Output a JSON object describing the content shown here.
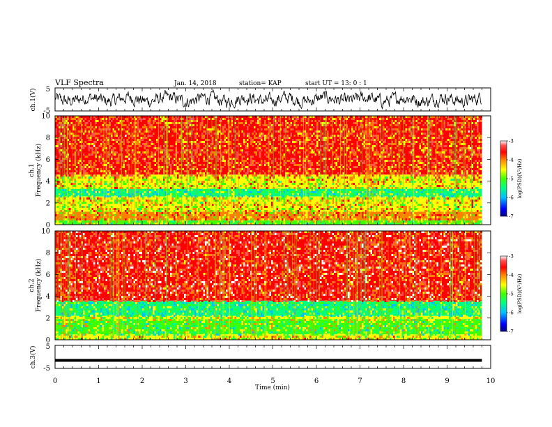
{
  "header": {
    "title": "VLF Spectra",
    "date": "Jan. 14, 2018",
    "station": "station= KAP",
    "start": "start  UT =   13: 0  : 1"
  },
  "chart_data": [
    {
      "type": "line",
      "panel": "ch1-waveform",
      "ylabel": "ch.1(V)",
      "ylim": [
        -5,
        5
      ],
      "yticks": [
        "5",
        "-5"
      ],
      "x_range_min": [
        0,
        9.8
      ],
      "description_values": "noisy waveform oscillating roughly between -3.5 and 3.5 V"
    },
    {
      "type": "heatmap",
      "panel": "ch1-spectrogram",
      "ylabel": "ch.1",
      "ylabel2": "Frequency (kHz)",
      "ylim": [
        0,
        10
      ],
      "yticks": [
        "0",
        "2",
        "4",
        "6",
        "8",
        "10"
      ],
      "xlim": [
        0,
        10
      ],
      "data_extent_min": 9.8,
      "bands_khz": [
        {
          "from": 0,
          "to": 0.4,
          "level": -5.2
        },
        {
          "from": 0.4,
          "to": 1.2,
          "level": -4.5
        },
        {
          "from": 1.2,
          "to": 2.6,
          "level": -4.8
        },
        {
          "from": 2.6,
          "to": 3.3,
          "level": -5.6
        },
        {
          "from": 3.3,
          "to": 4.6,
          "level": -4.8
        },
        {
          "from": 4.6,
          "to": 10,
          "level": -4.1
        }
      ]
    },
    {
      "type": "heatmap",
      "panel": "ch2-spectrogram",
      "ylabel": "ch.2",
      "ylabel2": "Frequency (kHz)",
      "ylim": [
        0,
        10
      ],
      "yticks": [
        "0",
        "2",
        "4",
        "6",
        "8",
        "10"
      ],
      "xlim": [
        0,
        10
      ],
      "data_extent_min": 9.8,
      "bands_khz": [
        {
          "from": 0,
          "to": 0.5,
          "level": -4.9
        },
        {
          "from": 0.5,
          "to": 1.9,
          "level": -5.3
        },
        {
          "from": 1.9,
          "to": 2.2,
          "level": -5.0
        },
        {
          "from": 2.2,
          "to": 3.6,
          "level": -5.6
        },
        {
          "from": 3.6,
          "to": 10,
          "level": -3.9
        }
      ]
    },
    {
      "type": "line",
      "panel": "ch3-waveform",
      "ylabel": "ch.3(V)",
      "ylim": [
        -5,
        5
      ],
      "yticks": [
        "5",
        "-5"
      ],
      "value": -1.5,
      "xlabel": "Time (min)",
      "xticks": [
        "0",
        "1",
        "2",
        "3",
        "4",
        "5",
        "6",
        "7",
        "8",
        "9",
        "10"
      ],
      "xlim": [
        0,
        10
      ]
    }
  ],
  "colorbar": {
    "label": "log(PSD)(V²/Hz)",
    "range": [
      -7,
      -3
    ],
    "ticks": [
      "-3",
      "-4",
      "-5",
      "-6",
      "-7"
    ]
  },
  "colors": {
    "scale": [
      "#00007f",
      "#0000ff",
      "#00bfff",
      "#00ff80",
      "#40ff00",
      "#ffff00",
      "#ff8000",
      "#ff0000",
      "#ff5050",
      "#ffffff"
    ]
  }
}
